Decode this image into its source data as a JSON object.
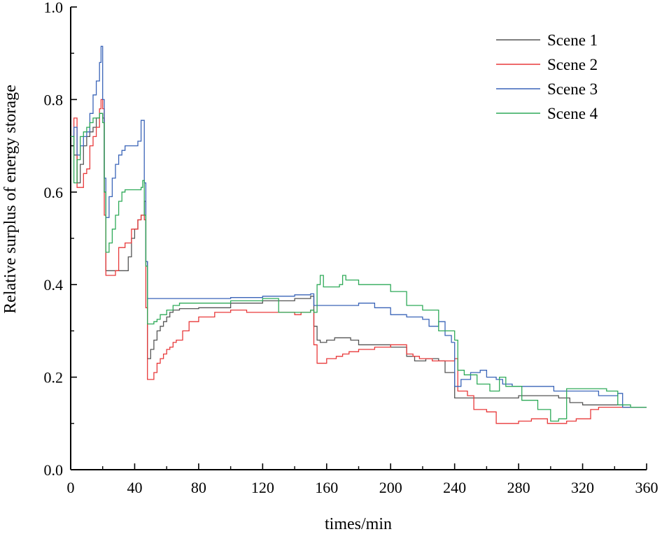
{
  "chart_data": {
    "type": "line",
    "title": "",
    "xlabel": "times/min",
    "ylabel": "Relative surplus of energy storage",
    "xlim": [
      0,
      360
    ],
    "ylim": [
      0,
      1.0
    ],
    "xticks": [
      0,
      40,
      80,
      120,
      160,
      200,
      240,
      280,
      320,
      360
    ],
    "yticks": [
      0.0,
      0.2,
      0.4,
      0.6,
      0.8,
      1.0
    ],
    "ytick_labels": [
      "0.0",
      "0.2",
      "0.4",
      "0.6",
      "0.8",
      "1.0"
    ],
    "grid": false,
    "legend_position": "top-right",
    "step": true,
    "series": [
      {
        "name": "Scene 1",
        "color": "#555555",
        "points": [
          [
            0,
            0.72
          ],
          [
            2,
            0.68
          ],
          [
            4,
            0.62
          ],
          [
            6,
            0.66
          ],
          [
            8,
            0.7
          ],
          [
            10,
            0.72
          ],
          [
            12,
            0.73
          ],
          [
            14,
            0.74
          ],
          [
            16,
            0.76
          ],
          [
            18,
            0.77
          ],
          [
            20,
            0.76
          ],
          [
            21,
            0.6
          ],
          [
            22,
            0.43
          ],
          [
            28,
            0.43
          ],
          [
            34,
            0.43
          ],
          [
            36,
            0.46
          ],
          [
            38,
            0.5
          ],
          [
            40,
            0.52
          ],
          [
            42,
            0.54
          ],
          [
            44,
            0.55
          ],
          [
            46,
            0.58
          ],
          [
            47,
            0.45
          ],
          [
            48,
            0.24
          ],
          [
            50,
            0.26
          ],
          [
            52,
            0.28
          ],
          [
            54,
            0.3
          ],
          [
            56,
            0.31
          ],
          [
            58,
            0.32
          ],
          [
            60,
            0.33
          ],
          [
            62,
            0.34
          ],
          [
            64,
            0.345
          ],
          [
            68,
            0.348
          ],
          [
            80,
            0.35
          ],
          [
            100,
            0.36
          ],
          [
            120,
            0.365
          ],
          [
            140,
            0.37
          ],
          [
            150,
            0.375
          ],
          [
            152,
            0.31
          ],
          [
            154,
            0.28
          ],
          [
            156,
            0.275
          ],
          [
            160,
            0.28
          ],
          [
            165,
            0.285
          ],
          [
            175,
            0.28
          ],
          [
            180,
            0.27
          ],
          [
            185,
            0.27
          ],
          [
            200,
            0.265
          ],
          [
            210,
            0.245
          ],
          [
            215,
            0.235
          ],
          [
            222,
            0.24
          ],
          [
            230,
            0.235
          ],
          [
            234,
            0.21
          ],
          [
            240,
            0.155
          ],
          [
            250,
            0.155
          ],
          [
            260,
            0.155
          ],
          [
            280,
            0.16
          ],
          [
            300,
            0.16
          ],
          [
            305,
            0.155
          ],
          [
            312,
            0.145
          ],
          [
            320,
            0.14
          ],
          [
            330,
            0.14
          ],
          [
            345,
            0.135
          ],
          [
            360,
            0.135
          ]
        ]
      },
      {
        "name": "Scene 2",
        "color": "#e8393a",
        "points": [
          [
            0,
            0.72
          ],
          [
            2,
            0.76
          ],
          [
            4,
            0.61
          ],
          [
            6,
            0.61
          ],
          [
            8,
            0.64
          ],
          [
            10,
            0.65
          ],
          [
            12,
            0.7
          ],
          [
            14,
            0.72
          ],
          [
            16,
            0.74
          ],
          [
            18,
            0.78
          ],
          [
            19,
            0.8
          ],
          [
            20,
            0.78
          ],
          [
            21,
            0.55
          ],
          [
            22,
            0.42
          ],
          [
            26,
            0.42
          ],
          [
            28,
            0.43
          ],
          [
            30,
            0.48
          ],
          [
            34,
            0.49
          ],
          [
            38,
            0.52
          ],
          [
            42,
            0.54
          ],
          [
            44,
            0.55
          ],
          [
            46,
            0.54
          ],
          [
            47,
            0.35
          ],
          [
            48,
            0.195
          ],
          [
            52,
            0.21
          ],
          [
            54,
            0.23
          ],
          [
            56,
            0.24
          ],
          [
            58,
            0.25
          ],
          [
            60,
            0.26
          ],
          [
            62,
            0.265
          ],
          [
            64,
            0.275
          ],
          [
            66,
            0.28
          ],
          [
            70,
            0.3
          ],
          [
            74,
            0.32
          ],
          [
            80,
            0.33
          ],
          [
            90,
            0.34
          ],
          [
            100,
            0.345
          ],
          [
            110,
            0.34
          ],
          [
            130,
            0.34
          ],
          [
            140,
            0.335
          ],
          [
            144,
            0.34
          ],
          [
            150,
            0.345
          ],
          [
            152,
            0.27
          ],
          [
            154,
            0.23
          ],
          [
            158,
            0.23
          ],
          [
            160,
            0.24
          ],
          [
            166,
            0.245
          ],
          [
            170,
            0.25
          ],
          [
            174,
            0.255
          ],
          [
            180,
            0.26
          ],
          [
            190,
            0.265
          ],
          [
            200,
            0.27
          ],
          [
            210,
            0.25
          ],
          [
            214,
            0.245
          ],
          [
            218,
            0.24
          ],
          [
            226,
            0.235
          ],
          [
            232,
            0.235
          ],
          [
            240,
            0.24
          ],
          [
            242,
            0.17
          ],
          [
            248,
            0.16
          ],
          [
            252,
            0.13
          ],
          [
            260,
            0.125
          ],
          [
            266,
            0.1
          ],
          [
            275,
            0.1
          ],
          [
            280,
            0.105
          ],
          [
            288,
            0.11
          ],
          [
            298,
            0.1
          ],
          [
            310,
            0.105
          ],
          [
            316,
            0.11
          ],
          [
            325,
            0.13
          ],
          [
            330,
            0.135
          ],
          [
            340,
            0.135
          ],
          [
            350,
            0.135
          ],
          [
            360,
            0.135
          ]
        ]
      },
      {
        "name": "Scene 3",
        "color": "#3a64b8",
        "points": [
          [
            0,
            0.72
          ],
          [
            2,
            0.74
          ],
          [
            4,
            0.68
          ],
          [
            6,
            0.7
          ],
          [
            8,
            0.72
          ],
          [
            10,
            0.73
          ],
          [
            12,
            0.77
          ],
          [
            14,
            0.81
          ],
          [
            16,
            0.84
          ],
          [
            18,
            0.88
          ],
          [
            19,
            0.915
          ],
          [
            20,
            0.8
          ],
          [
            21,
            0.63
          ],
          [
            22,
            0.545
          ],
          [
            24,
            0.59
          ],
          [
            26,
            0.63
          ],
          [
            28,
            0.66
          ],
          [
            30,
            0.68
          ],
          [
            32,
            0.69
          ],
          [
            34,
            0.7
          ],
          [
            42,
            0.71
          ],
          [
            44,
            0.755
          ],
          [
            46,
            0.62
          ],
          [
            47,
            0.45
          ],
          [
            48,
            0.37
          ],
          [
            60,
            0.37
          ],
          [
            100,
            0.372
          ],
          [
            120,
            0.375
          ],
          [
            140,
            0.378
          ],
          [
            150,
            0.38
          ],
          [
            152,
            0.355
          ],
          [
            170,
            0.355
          ],
          [
            180,
            0.36
          ],
          [
            190,
            0.35
          ],
          [
            200,
            0.335
          ],
          [
            210,
            0.33
          ],
          [
            220,
            0.325
          ],
          [
            224,
            0.31
          ],
          [
            230,
            0.32
          ],
          [
            234,
            0.29
          ],
          [
            238,
            0.275
          ],
          [
            240,
            0.18
          ],
          [
            244,
            0.195
          ],
          [
            250,
            0.21
          ],
          [
            256,
            0.215
          ],
          [
            260,
            0.2
          ],
          [
            266,
            0.195
          ],
          [
            270,
            0.185
          ],
          [
            276,
            0.18
          ],
          [
            300,
            0.18
          ],
          [
            302,
            0.17
          ],
          [
            306,
            0.17
          ],
          [
            320,
            0.17
          ],
          [
            330,
            0.16
          ],
          [
            342,
            0.165
          ],
          [
            345,
            0.135
          ],
          [
            360,
            0.135
          ]
        ]
      },
      {
        "name": "Scene 4",
        "color": "#2eaa58",
        "points": [
          [
            0,
            0.72
          ],
          [
            2,
            0.62
          ],
          [
            4,
            0.67
          ],
          [
            6,
            0.72
          ],
          [
            8,
            0.73
          ],
          [
            10,
            0.74
          ],
          [
            12,
            0.75
          ],
          [
            14,
            0.76
          ],
          [
            18,
            0.77
          ],
          [
            20,
            0.75
          ],
          [
            21,
            0.6
          ],
          [
            22,
            0.47
          ],
          [
            24,
            0.49
          ],
          [
            26,
            0.52
          ],
          [
            28,
            0.55
          ],
          [
            30,
            0.58
          ],
          [
            32,
            0.6
          ],
          [
            34,
            0.605
          ],
          [
            44,
            0.61
          ],
          [
            45,
            0.625
          ],
          [
            46,
            0.55
          ],
          [
            47,
            0.44
          ],
          [
            48,
            0.315
          ],
          [
            52,
            0.32
          ],
          [
            54,
            0.325
          ],
          [
            56,
            0.335
          ],
          [
            60,
            0.345
          ],
          [
            64,
            0.355
          ],
          [
            68,
            0.36
          ],
          [
            80,
            0.36
          ],
          [
            100,
            0.365
          ],
          [
            120,
            0.37
          ],
          [
            130,
            0.34
          ],
          [
            140,
            0.34
          ],
          [
            150,
            0.345
          ],
          [
            152,
            0.34
          ],
          [
            154,
            0.4
          ],
          [
            156,
            0.42
          ],
          [
            158,
            0.395
          ],
          [
            168,
            0.4
          ],
          [
            170,
            0.42
          ],
          [
            172,
            0.41
          ],
          [
            180,
            0.4
          ],
          [
            200,
            0.385
          ],
          [
            210,
            0.355
          ],
          [
            220,
            0.345
          ],
          [
            230,
            0.3
          ],
          [
            240,
            0.28
          ],
          [
            242,
            0.215
          ],
          [
            246,
            0.205
          ],
          [
            254,
            0.185
          ],
          [
            262,
            0.17
          ],
          [
            268,
            0.2
          ],
          [
            272,
            0.18
          ],
          [
            282,
            0.15
          ],
          [
            292,
            0.13
          ],
          [
            300,
            0.105
          ],
          [
            305,
            0.11
          ],
          [
            310,
            0.175
          ],
          [
            320,
            0.175
          ],
          [
            335,
            0.17
          ],
          [
            342,
            0.14
          ],
          [
            350,
            0.135
          ],
          [
            360,
            0.135
          ]
        ]
      }
    ]
  }
}
